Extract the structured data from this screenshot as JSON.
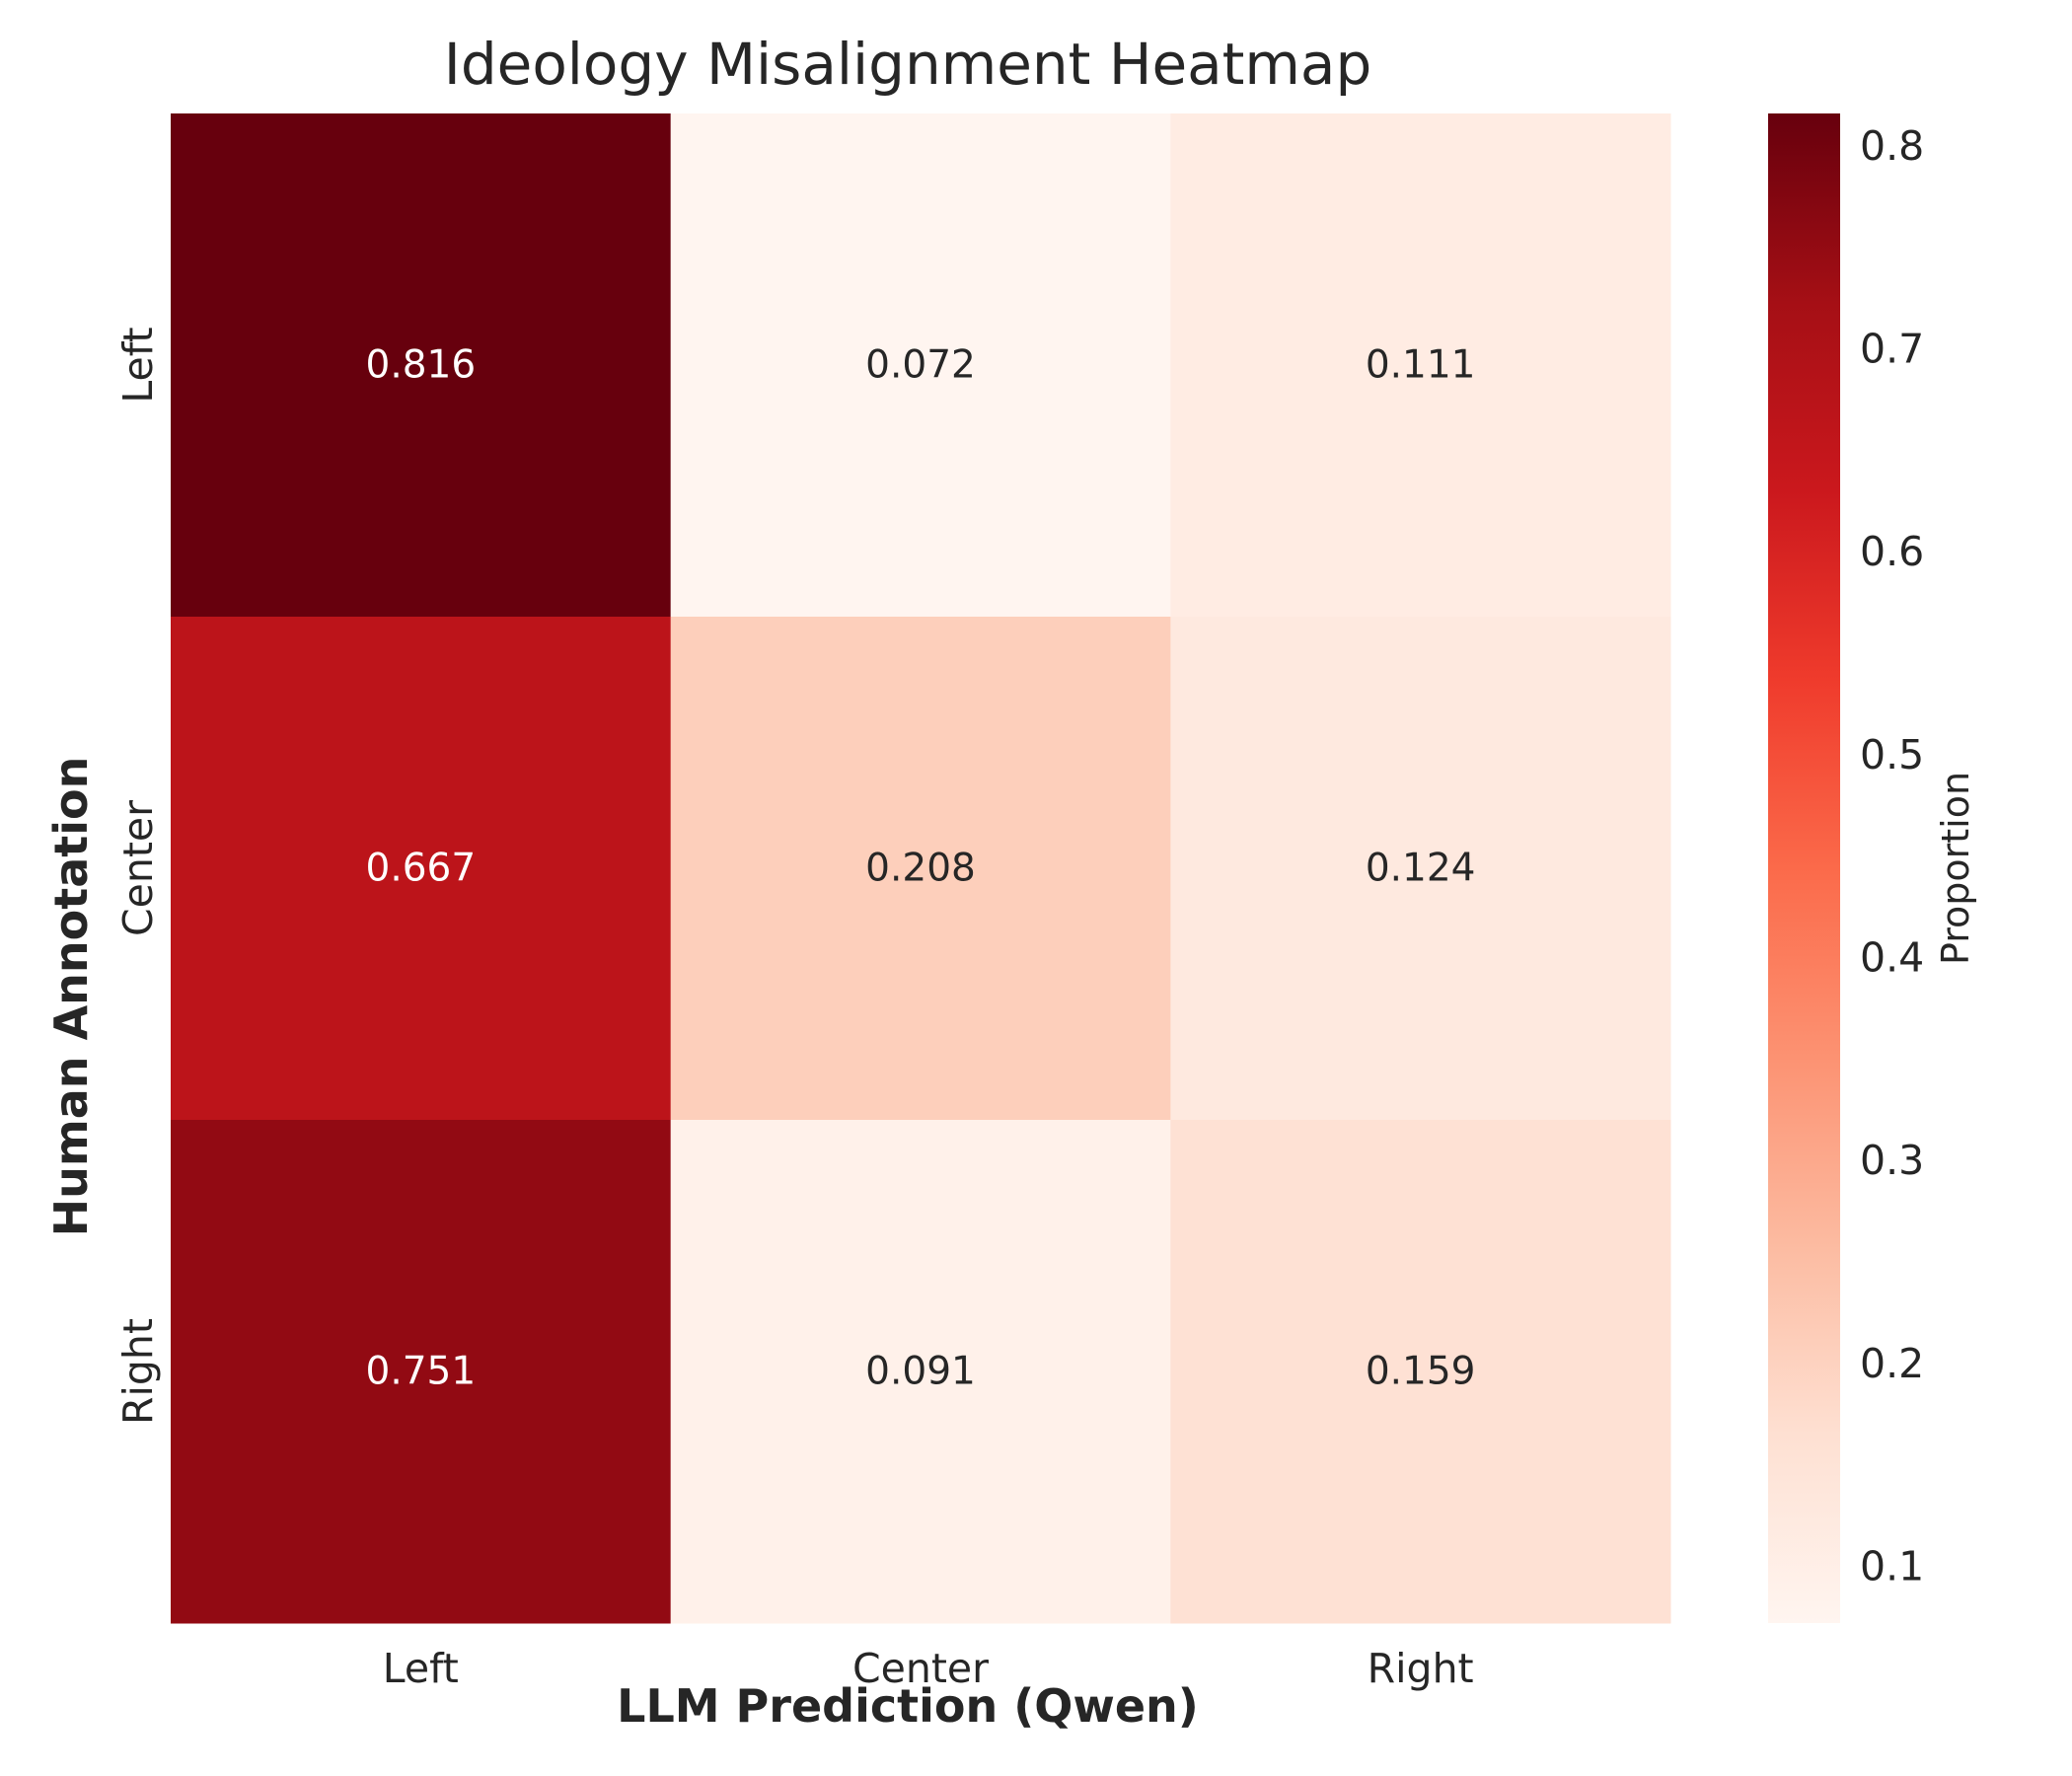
{
  "chart_data": {
    "type": "heatmap",
    "title": "Ideology Misalignment Heatmap",
    "xlabel": "LLM Prediction (Qwen)",
    "ylabel": "Human Annotation",
    "x_categories": [
      "Left",
      "Center",
      "Right"
    ],
    "y_categories": [
      "Left",
      "Center",
      "Right"
    ],
    "values": [
      [
        0.816,
        0.072,
        0.111
      ],
      [
        0.667,
        0.208,
        0.124
      ],
      [
        0.751,
        0.091,
        0.159
      ]
    ],
    "value_labels": [
      [
        "0.816",
        "0.072",
        "0.111"
      ],
      [
        "0.667",
        "0.208",
        "0.124"
      ],
      [
        "0.751",
        "0.091",
        "0.159"
      ]
    ],
    "colormap": "Reds",
    "colormap_stops": [
      "#fff5f0",
      "#fee0d2",
      "#fcbba1",
      "#fc9272",
      "#fb6a4a",
      "#ef3b2c",
      "#cb181d",
      "#a50f15",
      "#67000d"
    ],
    "colorbar": {
      "label": "Proportion",
      "range": [
        0.072,
        0.816
      ],
      "ticks": [
        0.1,
        0.2,
        0.3,
        0.4,
        0.5,
        0.6,
        0.7,
        0.8
      ],
      "tick_labels": [
        "0.1",
        "0.2",
        "0.3",
        "0.4",
        "0.5",
        "0.6",
        "0.7",
        "0.8"
      ]
    },
    "text_color_dark": "#262626",
    "text_color_light": "#ffffff",
    "grid": false
  }
}
